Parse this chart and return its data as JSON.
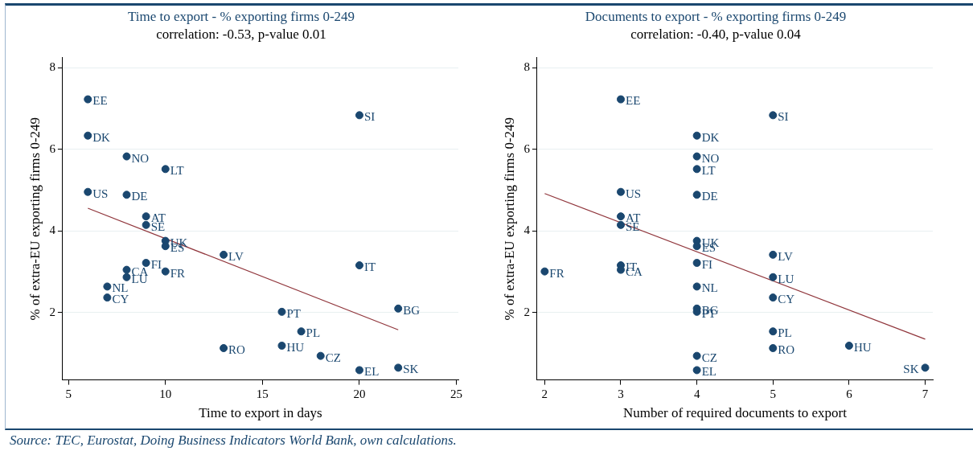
{
  "chart_data": [
    {
      "type": "scatter",
      "title": "Time to export - % exporting firms 0-249",
      "subtitle": "correlation: -0.53, p-value 0.01",
      "xlabel": "Time to export in days",
      "ylabel": "% of extra-EU exporting firms 0-249",
      "xlim": [
        4.7,
        25.1
      ],
      "xticks": [
        5,
        10,
        15,
        20,
        25
      ],
      "ylim": [
        0.35,
        8.25
      ],
      "yticks": [
        2,
        4,
        6,
        8
      ],
      "grid": "y",
      "legend": false,
      "series": [
        {
          "type": "scatter",
          "marker": "circle",
          "color": "#1a476f",
          "x": [
            6,
            6,
            6,
            8,
            8,
            8,
            8,
            10,
            10,
            10,
            10,
            9,
            9,
            9,
            7,
            7,
            13,
            13,
            16,
            16,
            17,
            18,
            20,
            20,
            20,
            22,
            22
          ],
          "values": [
            7.23,
            6.34,
            4.96,
            5.83,
            4.89,
            3.05,
            2.87,
            5.52,
            3.76,
            3.63,
            3.01,
            4.36,
            4.15,
            3.22,
            2.64,
            2.37,
            3.42,
            1.13,
            2.02,
            1.19,
            1.54,
            0.94,
            3.16,
            6.84,
            0.59,
            2.1,
            0.65
          ]
        },
        {
          "type": "line",
          "marker": "none",
          "color": "#90353b",
          "x": [
            6,
            22
          ],
          "values": [
            4.56,
            1.58
          ]
        }
      ],
      "annotations": [
        {
          "text": "EE",
          "x": 6,
          "y": 7.23
        },
        {
          "text": "DK",
          "x": 6,
          "y": 6.34
        },
        {
          "text": "US",
          "x": 6,
          "y": 4.96
        },
        {
          "text": "NO",
          "x": 8,
          "y": 5.83
        },
        {
          "text": "DE",
          "x": 8,
          "y": 4.89
        },
        {
          "text": "CA",
          "x": 8,
          "y": 3.05
        },
        {
          "text": "LU",
          "x": 8,
          "y": 2.87
        },
        {
          "text": "LT",
          "x": 10,
          "y": 5.52
        },
        {
          "text": "UK",
          "x": 10,
          "y": 3.76
        },
        {
          "text": "ES",
          "x": 10,
          "y": 3.63
        },
        {
          "text": "FR",
          "x": 10,
          "y": 3.01
        },
        {
          "text": "AT",
          "x": 9,
          "y": 4.36
        },
        {
          "text": "SE",
          "x": 9,
          "y": 4.15
        },
        {
          "text": "FI",
          "x": 9,
          "y": 3.22
        },
        {
          "text": "NL",
          "x": 7,
          "y": 2.64
        },
        {
          "text": "CY",
          "x": 7,
          "y": 2.37
        },
        {
          "text": "LV",
          "x": 13,
          "y": 3.42
        },
        {
          "text": "RO",
          "x": 13,
          "y": 1.13
        },
        {
          "text": "PT",
          "x": 16,
          "y": 2.02
        },
        {
          "text": "HU",
          "x": 16,
          "y": 1.19
        },
        {
          "text": "PL",
          "x": 17,
          "y": 1.54
        },
        {
          "text": "CZ",
          "x": 18,
          "y": 0.94
        },
        {
          "text": "IT",
          "x": 20,
          "y": 3.16
        },
        {
          "text": "SI",
          "x": 20,
          "y": 6.84
        },
        {
          "text": "EL",
          "x": 20,
          "y": 0.59
        },
        {
          "text": "BG",
          "x": 22,
          "y": 2.1
        },
        {
          "text": "SK",
          "x": 22,
          "y": 0.65
        },
        "Source: TEC, Eurostat, Doing Business Indicators World Bank, own calculations."
      ]
    },
    {
      "type": "scatter",
      "title": "Documents to export - % exporting firms 0-249",
      "subtitle": "correlation: -0.40, p-value 0.04",
      "xlabel": "Number of required documents to export",
      "ylabel": "% of extra-EU exporting firms 0-249",
      "xlim": [
        1.9,
        7.1
      ],
      "xticks": [
        2,
        3,
        4,
        5,
        6,
        7
      ],
      "ylim": [
        0.35,
        8.25
      ],
      "yticks": [
        2,
        4,
        6,
        8
      ],
      "grid": "y",
      "legend": false,
      "series": [
        {
          "type": "scatter",
          "marker": "circle",
          "color": "#1a476f",
          "x": [
            3,
            3,
            3,
            3,
            3,
            3,
            2,
            4,
            4,
            4,
            4,
            4,
            4,
            4,
            4,
            4,
            4,
            4,
            4,
            5,
            5,
            5,
            5,
            5,
            5,
            6,
            7
          ],
          "values": [
            7.23,
            4.96,
            4.36,
            4.15,
            3.16,
            3.05,
            3.01,
            6.34,
            5.83,
            5.52,
            4.89,
            3.76,
            3.63,
            3.22,
            2.64,
            2.1,
            2.02,
            0.94,
            0.59,
            6.84,
            3.42,
            2.87,
            2.37,
            1.54,
            1.13,
            1.19,
            0.65
          ]
        },
        {
          "type": "line",
          "marker": "none",
          "color": "#90353b",
          "x": [
            2,
            7
          ],
          "values": [
            4.92,
            1.35
          ]
        }
      ],
      "annotations": [
        {
          "text": "EE",
          "x": 3,
          "y": 7.23
        },
        {
          "text": "US",
          "x": 3,
          "y": 4.96
        },
        {
          "text": "AT",
          "x": 3,
          "y": 4.36
        },
        {
          "text": "SE",
          "x": 3,
          "y": 4.15
        },
        {
          "text": "IT",
          "x": 3,
          "y": 3.16
        },
        {
          "text": "CA",
          "x": 3,
          "y": 3.05
        },
        {
          "text": "FR",
          "x": 2,
          "y": 3.01
        },
        {
          "text": "DK",
          "x": 4,
          "y": 6.34
        },
        {
          "text": "NO",
          "x": 4,
          "y": 5.83
        },
        {
          "text": "LT",
          "x": 4,
          "y": 5.52
        },
        {
          "text": "DE",
          "x": 4,
          "y": 4.89
        },
        {
          "text": "UK",
          "x": 4,
          "y": 3.76
        },
        {
          "text": "ES",
          "x": 4,
          "y": 3.63
        },
        {
          "text": "FI",
          "x": 4,
          "y": 3.22
        },
        {
          "text": "NL",
          "x": 4,
          "y": 2.64
        },
        {
          "text": "BG",
          "x": 4,
          "y": 2.1
        },
        {
          "text": "PT",
          "x": 4,
          "y": 2.02
        },
        {
          "text": "CZ",
          "x": 4,
          "y": 0.94
        },
        {
          "text": "EL",
          "x": 4,
          "y": 0.59
        },
        {
          "text": "SI",
          "x": 5,
          "y": 6.84
        },
        {
          "text": "LV",
          "x": 5,
          "y": 3.42
        },
        {
          "text": "LU",
          "x": 5,
          "y": 2.87
        },
        {
          "text": "CY",
          "x": 5,
          "y": 2.37
        },
        {
          "text": "PL",
          "x": 5,
          "y": 1.54
        },
        {
          "text": "RO",
          "x": 5,
          "y": 1.13
        },
        {
          "text": "HU",
          "x": 6,
          "y": 1.19
        },
        {
          "text": "SK",
          "x": 7,
          "y": 0.65
        }
      ]
    }
  ]
}
